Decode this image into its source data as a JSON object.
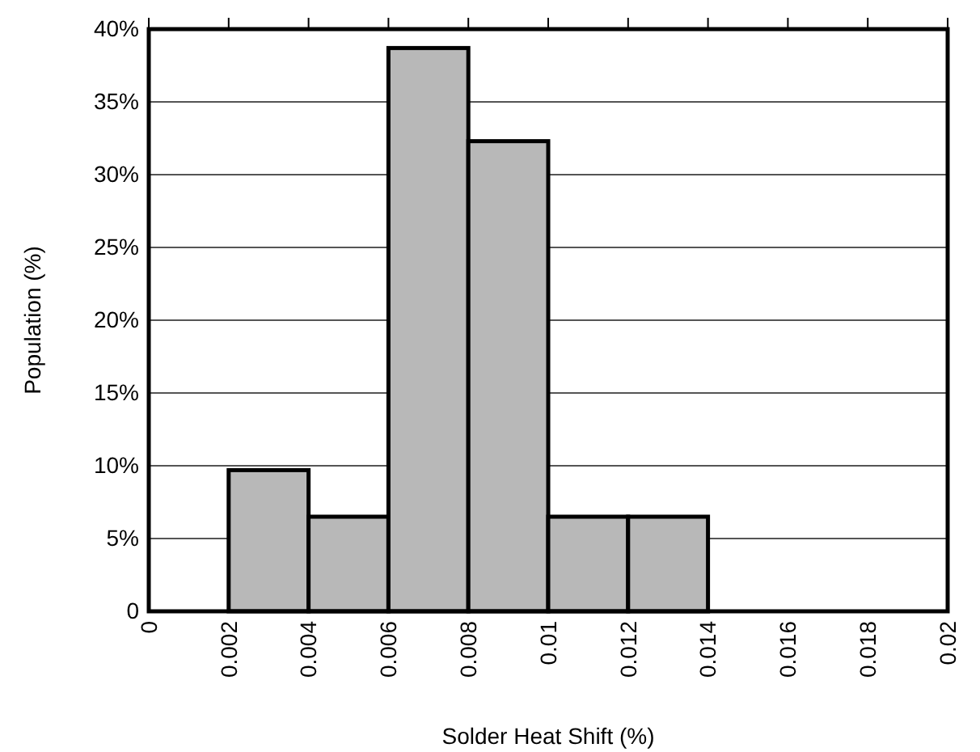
{
  "chart_data": {
    "type": "histogram",
    "xlabel": "Solder Heat Shift (%)",
    "ylabel": "Population (%)",
    "bins": [
      0.002,
      0.004,
      0.006,
      0.008,
      0.01,
      0.012,
      0.014
    ],
    "values": [
      9.7,
      6.5,
      38.7,
      32.3,
      6.5,
      6.5
    ],
    "color": "#b8b8b8",
    "xlim": [
      0,
      0.02
    ],
    "xticks": [
      0,
      0.002,
      0.004,
      0.006,
      0.008,
      0.01,
      0.012,
      0.014,
      0.016,
      0.018,
      0.02
    ],
    "ylim": [
      0,
      40
    ],
    "yticks": [
      0,
      {
        "value": 5,
        "label": "5%"
      },
      {
        "value": 10,
        "label": "10%"
      },
      {
        "value": 15,
        "label": "15%"
      },
      {
        "value": 20,
        "label": "20%"
      },
      {
        "value": 25,
        "label": "25%"
      },
      {
        "value": 30,
        "label": "30%"
      },
      {
        "value": 35,
        "label": "35%"
      },
      {
        "value": 40,
        "label": "40%"
      }
    ],
    "grid": "y"
  }
}
